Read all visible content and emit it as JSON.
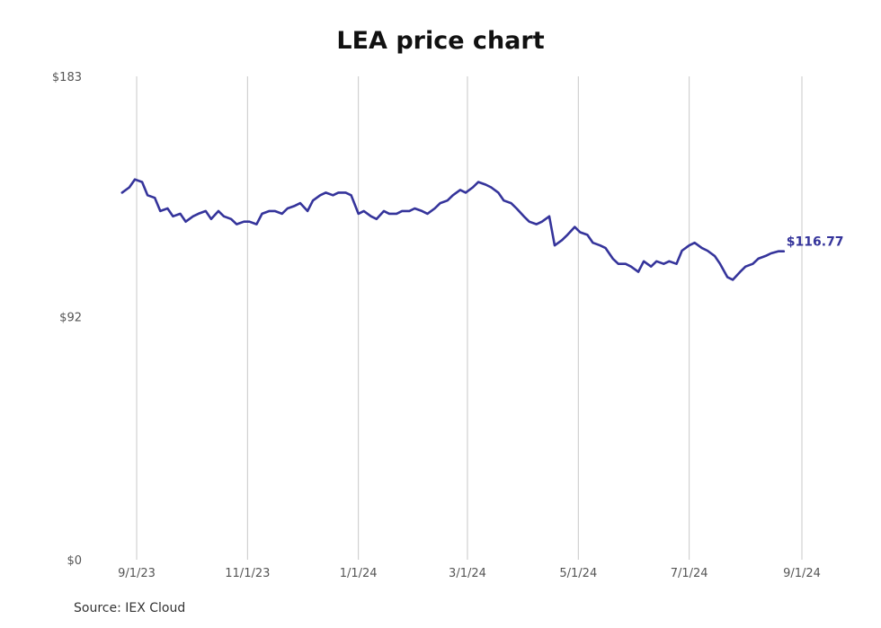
{
  "colors": {
    "series": "#35349b",
    "grid": "#c8c8c8",
    "axis_text": "#555555"
  },
  "chart_data": {
    "type": "line",
    "title": "LEA price chart",
    "xlabel": "",
    "ylabel": "",
    "ylim": [
      0,
      183
    ],
    "y_ticks": [
      0,
      92,
      183
    ],
    "y_tick_labels": [
      "$0",
      "$92",
      "$183"
    ],
    "x_ticks": [
      "2023-09-01",
      "2023-11-01",
      "2024-01-01",
      "2024-03-01",
      "2024-05-01",
      "2024-07-01",
      "2024-09-01"
    ],
    "x_tick_labels": [
      "9/1/23",
      "11/1/23",
      "1/1/24",
      "3/1/24",
      "5/1/24",
      "7/1/24",
      "9/1/24"
    ],
    "grid": "vertical",
    "last_value_label": "$116.77",
    "series": [
      {
        "x": [
          "2023-08-24",
          "2023-08-28",
          "2023-08-31",
          "2023-09-04",
          "2023-09-07",
          "2023-09-11",
          "2023-09-14",
          "2023-09-18",
          "2023-09-21",
          "2023-09-25",
          "2023-09-28",
          "2023-10-02",
          "2023-10-05",
          "2023-10-09",
          "2023-10-12",
          "2023-10-16",
          "2023-10-19",
          "2023-10-23",
          "2023-10-26",
          "2023-10-30",
          "2023-11-02",
          "2023-11-06",
          "2023-11-09",
          "2023-11-13",
          "2023-11-16",
          "2023-11-20",
          "2023-11-23",
          "2023-11-27",
          "2023-11-30",
          "2023-12-04",
          "2023-12-07",
          "2023-12-11",
          "2023-12-14",
          "2023-12-18",
          "2023-12-21",
          "2023-12-25",
          "2023-12-28",
          "2024-01-01",
          "2024-01-04",
          "2024-01-08",
          "2024-01-11",
          "2024-01-15",
          "2024-01-18",
          "2024-01-22",
          "2024-01-25",
          "2024-01-29",
          "2024-02-01",
          "2024-02-05",
          "2024-02-08",
          "2024-02-12",
          "2024-02-15",
          "2024-02-19",
          "2024-02-22",
          "2024-02-26",
          "2024-02-29",
          "2024-03-04",
          "2024-03-07",
          "2024-03-11",
          "2024-03-14",
          "2024-03-18",
          "2024-03-21",
          "2024-03-25",
          "2024-03-28",
          "2024-04-01",
          "2024-04-04",
          "2024-04-08",
          "2024-04-11",
          "2024-04-15",
          "2024-04-18",
          "2024-04-22",
          "2024-04-25",
          "2024-04-29",
          "2024-05-02",
          "2024-05-06",
          "2024-05-09",
          "2024-05-13",
          "2024-05-16",
          "2024-05-20",
          "2024-05-23",
          "2024-05-27",
          "2024-05-30",
          "2024-06-03",
          "2024-06-06",
          "2024-06-10",
          "2024-06-13",
          "2024-06-17",
          "2024-06-20",
          "2024-06-24",
          "2024-06-27",
          "2024-07-01",
          "2024-07-04",
          "2024-07-08",
          "2024-07-11",
          "2024-07-15",
          "2024-07-18",
          "2024-07-22",
          "2024-07-25",
          "2024-07-29",
          "2024-08-01",
          "2024-08-05",
          "2024-08-08",
          "2024-08-12",
          "2024-08-15",
          "2024-08-19",
          "2024-08-22"
        ],
        "y": [
          139,
          141,
          144,
          143,
          138,
          137,
          132,
          133,
          130,
          131,
          128,
          130,
          131,
          132,
          129,
          132,
          130,
          129,
          127,
          128,
          128,
          127,
          131,
          132,
          132,
          131,
          133,
          134,
          135,
          132,
          136,
          138,
          139,
          138,
          139,
          139,
          138,
          131,
          132,
          130,
          129,
          132,
          131,
          131,
          132,
          132,
          133,
          132,
          131,
          133,
          135,
          136,
          138,
          140,
          139,
          141,
          143,
          142,
          141,
          139,
          136,
          135,
          133,
          130,
          128,
          127,
          128,
          130,
          119,
          121,
          123,
          126,
          124,
          123,
          120,
          119,
          118,
          114,
          112,
          112,
          111,
          109,
          113,
          111,
          113,
          112,
          113,
          112,
          117,
          119,
          120,
          118,
          117,
          115,
          112,
          107,
          106,
          109,
          111,
          112,
          114,
          115,
          116,
          116.77,
          116.77
        ]
      }
    ]
  },
  "footer": {
    "source": "Source: IEX Cloud"
  }
}
